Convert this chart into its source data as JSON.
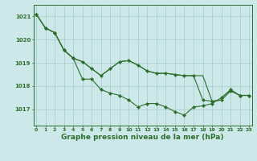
{
  "background_color": "#cce8e8",
  "grid_color": "#aacfcf",
  "line_color": "#2d6e2d",
  "marker_color": "#2d6e2d",
  "xlabel": "Graphe pression niveau de la mer (hPa)",
  "xlabel_fontsize": 6.5,
  "yticks": [
    1017,
    1018,
    1019,
    1020,
    1021
  ],
  "xticks": [
    0,
    1,
    2,
    3,
    4,
    5,
    6,
    7,
    8,
    9,
    10,
    11,
    12,
    13,
    14,
    15,
    16,
    17,
    18,
    19,
    20,
    21,
    22,
    23
  ],
  "ylim": [
    1016.3,
    1021.5
  ],
  "xlim": [
    -0.3,
    23.3
  ],
  "series": [
    [
      1021.1,
      1020.5,
      1020.3,
      1019.55,
      1019.2,
      1018.3,
      1018.3,
      1017.85,
      1017.7,
      1017.6,
      1017.4,
      1017.1,
      1017.25,
      1017.25,
      1017.1,
      1016.9,
      1016.75,
      1017.1,
      1017.15,
      1017.25,
      1017.5,
      1017.85,
      1017.6,
      1017.6
    ],
    [
      1021.1,
      1020.5,
      1020.3,
      1019.55,
      1019.2,
      1019.05,
      1018.75,
      1018.45,
      1018.75,
      1019.05,
      1019.1,
      1018.9,
      1018.65,
      1018.55,
      1018.55,
      1018.5,
      1018.45,
      1018.45,
      1017.4,
      1017.35,
      1017.4,
      1017.8,
      1017.6,
      1017.6
    ],
    [
      1021.1,
      1020.5,
      1020.3,
      1019.55,
      1019.2,
      1019.05,
      1018.75,
      1018.45,
      1018.75,
      1019.05,
      1019.1,
      1018.9,
      1018.65,
      1018.55,
      1018.55,
      1018.5,
      1018.45,
      1018.45,
      1018.45,
      1017.35,
      1017.4,
      1017.8,
      1017.6,
      1017.6
    ]
  ]
}
